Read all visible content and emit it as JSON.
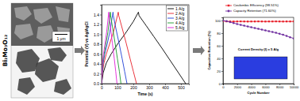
{
  "material": "Bi₂Mo₃O₁₂",
  "scale_bar": "1 μm",
  "chart_data": [
    {
      "type": "line",
      "x_label": "Time (s)",
      "y_label": "Potential (V) vs Ag/AgCl",
      "xlim": [
        0,
        550
      ],
      "xticks": [
        0,
        100,
        200,
        300,
        400,
        500
      ],
      "ylim": [
        0,
        1.6
      ],
      "yticks": [
        {
          "value": 0,
          "label": "0.0"
        },
        0.2,
        0.4,
        0.6,
        0.8,
        {
          "value": 1,
          "label": "1.0"
        },
        1.2,
        1.4
      ],
      "legend": "upper right",
      "grid": false,
      "series": [
        {
          "name": "1 A/g",
          "color": "#000000",
          "line_style": "solid",
          "x": [
            0,
            10,
            30,
            60,
            100,
            150,
            200,
            232,
            236,
            280,
            330,
            380,
            430,
            480,
            530
          ],
          "values": [
            0,
            0.22,
            0.42,
            0.6,
            0.8,
            1.02,
            1.26,
            1.45,
            1.38,
            1.18,
            0.95,
            0.72,
            0.48,
            0.24,
            0
          ]
        },
        {
          "name": "2 A/g",
          "color": "#e8202a",
          "line_style": "solid",
          "x": [
            0,
            5,
            15,
            30,
            50,
            75,
            105,
            108,
            130,
            155,
            180,
            200,
            220
          ],
          "values": [
            0,
            0.22,
            0.42,
            0.6,
            0.8,
            1.05,
            1.45,
            1.38,
            1.12,
            0.82,
            0.5,
            0.25,
            0
          ]
        },
        {
          "name": "3 A/g",
          "color": "#1f3fd6",
          "line_style": "solid",
          "x": [
            0,
            4,
            10,
            20,
            35,
            52,
            72,
            74,
            90,
            110,
            130,
            145,
            160
          ],
          "values": [
            0,
            0.22,
            0.42,
            0.6,
            0.8,
            1.05,
            1.45,
            1.38,
            1.12,
            0.82,
            0.5,
            0.25,
            0
          ]
        },
        {
          "name": "4 A/g",
          "color": "#1a9a2a",
          "line_style": "solid",
          "x": [
            0,
            3,
            8,
            16,
            27,
            40,
            55,
            57,
            70,
            85,
            100,
            112,
            122
          ],
          "values": [
            0,
            0.22,
            0.42,
            0.6,
            0.8,
            1.05,
            1.45,
            1.38,
            1.12,
            0.82,
            0.5,
            0.25,
            0
          ]
        },
        {
          "name": "5 A/g",
          "color": "#e020d8",
          "line_style": "solid",
          "x": [
            0,
            2,
            6,
            12,
            21,
            32,
            45,
            47,
            57,
            68,
            80,
            89,
            97
          ],
          "values": [
            0,
            0.22,
            0.42,
            0.6,
            0.8,
            1.05,
            1.45,
            1.38,
            1.12,
            0.82,
            0.5,
            0.25,
            0
          ]
        }
      ]
    },
    {
      "type": "line",
      "x_label": "Cycle Number",
      "y_label": "Capacitive Retention (%)",
      "annotations": [
        "Current Density (I) = 5 A/g"
      ],
      "xlim": [
        0,
        10000
      ],
      "xticks": [
        0,
        2000,
        4000,
        6000,
        8000,
        10000
      ],
      "ylim": [
        0,
        105
      ],
      "yticks": [
        0,
        20,
        40,
        60,
        80,
        100
      ],
      "legend": "top",
      "grid": false,
      "x": [
        0,
        500,
        1000,
        1500,
        2000,
        2500,
        3000,
        3500,
        4000,
        4500,
        5000,
        5500,
        6000,
        6500,
        7000,
        7500,
        8000,
        8500,
        9000,
        9500,
        10000
      ],
      "series": [
        {
          "name": "Coulombic Efficiency (98.51%)",
          "color": "#e8202a",
          "marker": "square",
          "line_style": "solid",
          "values": [
            99.2,
            98.6,
            98.5,
            98.4,
            98.5,
            98.6,
            98.5,
            98.4,
            98.5,
            98.5,
            98.6,
            98.5,
            98.4,
            98.5,
            98.5,
            98.6,
            98.5,
            98.4,
            98.5,
            98.5,
            98.51
          ]
        },
        {
          "name": "Capacity Retention (71.60%)",
          "color": "#7030a0",
          "marker": "circle",
          "line_style": "solid",
          "values": [
            100,
            99,
            97.5,
            96,
            94.5,
            93,
            91.8,
            90.5,
            89.3,
            88,
            86.8,
            85.5,
            84.3,
            83,
            81.8,
            80.5,
            79,
            77.5,
            75.5,
            73.5,
            71.6
          ]
        }
      ]
    }
  ]
}
